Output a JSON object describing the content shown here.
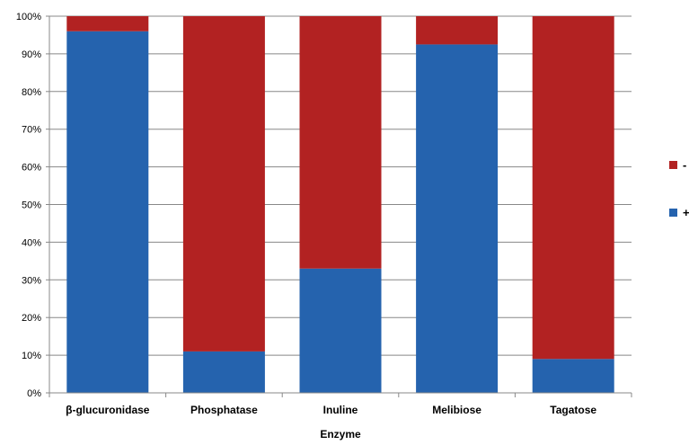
{
  "chart_data": {
    "type": "bar",
    "stacked": true,
    "percent": true,
    "categories": [
      "β-glucuronidase",
      "Phosphatase",
      "Inuline",
      "Melibiose",
      "Tagatose"
    ],
    "series": [
      {
        "name": "+",
        "color": "#2563AE",
        "values": [
          96,
          11,
          33,
          92.5,
          9
        ]
      },
      {
        "name": "-",
        "color": "#B22222",
        "values": [
          4,
          89,
          67,
          7.5,
          91
        ]
      }
    ],
    "xlabel": "Enzyme",
    "ylabel": "",
    "ylim": [
      0,
      100
    ],
    "yticks": [
      "0%",
      "10%",
      "20%",
      "30%",
      "40%",
      "50%",
      "60%",
      "70%",
      "80%",
      "90%",
      "100%"
    ],
    "grid": true,
    "legend": {
      "placement": "right",
      "entries": [
        "-",
        "+"
      ]
    }
  }
}
